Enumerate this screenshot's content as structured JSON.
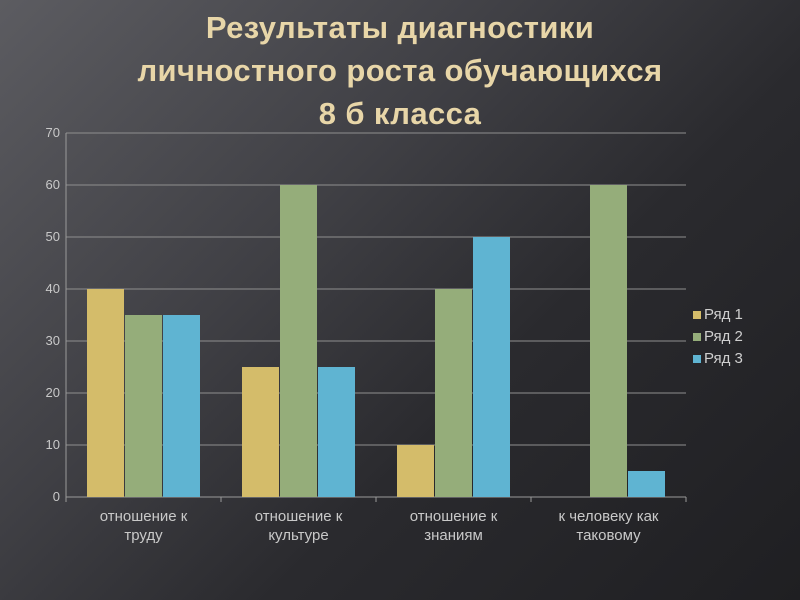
{
  "title": {
    "line1": "Результаты диагностики",
    "line2": "личностного роста обучающихся",
    "line3": "8 б класса"
  },
  "chart_data": {
    "type": "bar",
    "categories": [
      [
        "отношение к",
        "труду"
      ],
      [
        "отношение к",
        "культуре"
      ],
      [
        "отношение к",
        "знаниям"
      ],
      [
        "к человеку как",
        "таковому"
      ]
    ],
    "series": [
      {
        "name": "Ряд 1",
        "color": "#d4bc6a",
        "values": [
          40,
          25,
          10,
          0
        ]
      },
      {
        "name": "Ряд 2",
        "color": "#95ad7a",
        "values": [
          35,
          60,
          40,
          60
        ]
      },
      {
        "name": "Ряд 3",
        "color": "#5fb4d2",
        "values": [
          35,
          25,
          50,
          5
        ]
      }
    ],
    "ylim": [
      0,
      70
    ],
    "yticks": [
      "0",
      "10",
      "20",
      "30",
      "40",
      "50",
      "60",
      "70"
    ],
    "grid": true,
    "legend": "right"
  }
}
